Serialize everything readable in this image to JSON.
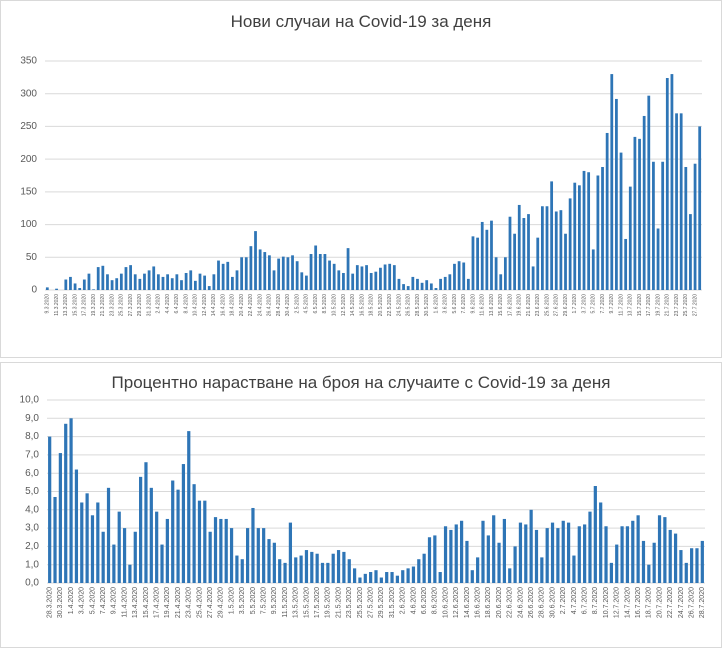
{
  "chart_data": [
    {
      "type": "bar",
      "title": "Нови случаи на Covid-19 за деня",
      "color": "#2e75b6",
      "grid": true,
      "ylim": [
        0,
        350
      ],
      "yticks": [
        0,
        50,
        100,
        150,
        200,
        250,
        300,
        350
      ],
      "categories": [
        "9.3.2020",
        null,
        "11.3.2020",
        null,
        "13.3.2020",
        null,
        "15.3.2020",
        null,
        "17.3.2020",
        null,
        "19.3.2020",
        null,
        "21.3.2020",
        null,
        "23.3.2020",
        null,
        "25.3.2020",
        null,
        "27.3.2020",
        null,
        "29.3.2020",
        null,
        "31.3.2020",
        null,
        "2.4.2020",
        null,
        "4.4.2020",
        null,
        "6.4.2020",
        null,
        "8.4.2020",
        null,
        "10.4.2020",
        null,
        "12.4.2020",
        null,
        "14.4.2020",
        null,
        "16.4.2020",
        null,
        "18.4.2020",
        null,
        "20.4.2020",
        null,
        "22.4.2020",
        null,
        "24.4.2020",
        null,
        "26.4.2020",
        null,
        "28.4.2020",
        null,
        "30.4.2020",
        null,
        "2.5.2020",
        null,
        "4.5.2020",
        null,
        "6.5.2020",
        null,
        "8.5.2020",
        null,
        "10.5.2020",
        null,
        "12.5.2020",
        null,
        "14.5.2020",
        null,
        "16.5.2020",
        null,
        "18.5.2020",
        null,
        "20.5.2020",
        null,
        "22.5.2020",
        null,
        "24.5.2020",
        null,
        "26.5.2020",
        null,
        "28.5.2020",
        null,
        "30.5.2020",
        null,
        "1.6.2020",
        null,
        "3.6.2020",
        null,
        "5.6.2020",
        null,
        "7.6.2020",
        null,
        "9.6.2020",
        null,
        "11.6.2020",
        null,
        "13.6.2020",
        null,
        "15.6.2020",
        null,
        "17.6.2020",
        null,
        "19.6.2020",
        null,
        "21.6.2020",
        null,
        "23.6.2020",
        null,
        "25.6.2020",
        null,
        "27.6.2020",
        null,
        "29.6.2020",
        null,
        "1.7.2020",
        null,
        "3.7.2020",
        null,
        "5.7.2020",
        null,
        "7.7.2020",
        null,
        "9.7.2020",
        null,
        "11.7.2020",
        null,
        "13.7.2020",
        null,
        "15.7.2020",
        null,
        "17.7.2020",
        null,
        "19.7.2020",
        null,
        "21.7.2020",
        null,
        "23.7.2020",
        null,
        "25.7.2020",
        null,
        "27.7.2020",
        null
      ],
      "values": [
        4,
        0,
        2,
        0,
        16,
        20,
        10,
        3,
        16,
        25,
        1,
        35,
        37,
        24,
        15,
        18,
        25,
        35,
        38,
        24,
        17,
        25,
        30,
        36,
        24,
        20,
        24,
        18,
        24,
        15,
        26,
        30,
        14,
        25,
        22,
        6,
        24,
        45,
        40,
        43,
        20,
        30,
        50,
        50,
        67,
        90,
        62,
        58,
        53,
        30,
        48,
        51,
        50,
        53,
        44,
        27,
        22,
        55,
        68,
        55,
        55,
        45,
        40,
        30,
        26,
        64,
        25,
        38,
        36,
        38,
        26,
        28,
        34,
        39,
        40,
        38,
        17,
        9,
        6,
        20,
        17,
        11,
        15,
        10,
        3,
        17,
        20,
        24,
        40,
        44,
        42,
        17,
        82,
        80,
        104,
        92,
        106,
        50,
        24,
        50,
        112,
        86,
        130,
        110,
        116,
        36,
        80,
        128,
        128,
        166,
        120,
        122,
        86,
        140,
        164,
        160,
        182,
        180,
        62,
        175,
        188,
        240,
        330,
        292,
        210,
        78,
        158,
        234,
        231,
        266,
        297,
        196,
        94,
        196,
        324,
        330,
        270,
        270,
        188,
        116,
        193,
        250
      ]
    },
    {
      "type": "bar",
      "title": "Процентно нарастване на броя на случаите с Covid-19 за деня",
      "color": "#2e75b6",
      "grid": true,
      "ylim": [
        0,
        10
      ],
      "yticks": [
        {
          "value": 0,
          "label": "0,0"
        },
        {
          "value": 1,
          "label": "1,0"
        },
        {
          "value": 2,
          "label": "2,0"
        },
        {
          "value": 3,
          "label": "3,0"
        },
        {
          "value": 4,
          "label": "4,0"
        },
        {
          "value": 5,
          "label": "5,0"
        },
        {
          "value": 6,
          "label": "6,0"
        },
        {
          "value": 7,
          "label": "7,0"
        },
        {
          "value": 8,
          "label": "8,0"
        },
        {
          "value": 9,
          "label": "9,0"
        },
        {
          "value": 10,
          "label": "10,0"
        }
      ],
      "categories": [
        "28.3.2020",
        null,
        "30.3.2020",
        null,
        "1.4.2020",
        null,
        "3.4.2020",
        null,
        "5.4.2020",
        null,
        "7.4.2020",
        null,
        "9.4.2020",
        null,
        "11.4.2020",
        null,
        "13.4.2020",
        null,
        "15.4.2020",
        null,
        "17.4.2020",
        null,
        "19.4.2020",
        null,
        "21.4.2020",
        null,
        "23.4.2020",
        null,
        "25.4.2020",
        null,
        "27.4.2020",
        null,
        "29.4.2020",
        null,
        "1.5.2020",
        null,
        "3.5.2020",
        null,
        "5.5.2020",
        null,
        "7.5.2020",
        null,
        "9.5.2020",
        null,
        "11.5.2020",
        null,
        "13.5.2020",
        null,
        "15.5.2020",
        null,
        "17.5.2020",
        null,
        "19.5.2020",
        null,
        "21.5.2020",
        null,
        "23.5.2020",
        null,
        "25.5.2020",
        null,
        "27.5.2020",
        null,
        "29.5.2020",
        null,
        "31.5.2020",
        null,
        "2.6.2020",
        null,
        "4.6.2020",
        null,
        "6.6.2020",
        null,
        "8.6.2020",
        null,
        "10.6.2020",
        null,
        "12.6.2020",
        null,
        "14.6.2020",
        null,
        "16.6.2020",
        null,
        "18.6.2020",
        null,
        "20.6.2020",
        null,
        "22.6.2020",
        null,
        "24.6.2020",
        null,
        "26.6.2020",
        null,
        "28.6.2020",
        null,
        "30.6.2020",
        null,
        "2.7.2020",
        null,
        "4.7.2020",
        null,
        "6.7.2020",
        null,
        "8.7.2020",
        null,
        "10.7.2020",
        null,
        "12.7.2020",
        null,
        "14.7.2020",
        null,
        "16.7.2020",
        null,
        "18.7.2020",
        null,
        "20.7.2020",
        null,
        "22.7.2020",
        null,
        "24.7.2020",
        null,
        "26.7.2020",
        null,
        "28.7.2020"
      ],
      "values": [
        8.0,
        4.7,
        7.1,
        8.7,
        9.0,
        6.2,
        4.4,
        4.9,
        3.7,
        4.4,
        2.8,
        5.2,
        2.1,
        3.9,
        3.0,
        1.0,
        2.8,
        5.8,
        6.6,
        5.2,
        3.9,
        2.1,
        3.5,
        5.6,
        5.1,
        6.5,
        8.3,
        5.4,
        4.5,
        4.5,
        2.8,
        3.6,
        3.5,
        3.5,
        3.0,
        1.5,
        1.3,
        3.0,
        4.1,
        3.0,
        3.0,
        2.4,
        2.2,
        1.3,
        1.1,
        3.3,
        1.4,
        1.5,
        1.8,
        1.7,
        1.6,
        1.1,
        1.1,
        1.6,
        1.8,
        1.7,
        1.3,
        0.8,
        0.3,
        0.5,
        0.6,
        0.7,
        0.3,
        0.6,
        0.6,
        0.4,
        0.7,
        0.8,
        0.9,
        1.3,
        1.6,
        2.5,
        2.6,
        0.6,
        3.1,
        2.9,
        3.2,
        3.4,
        2.3,
        0.7,
        1.4,
        3.4,
        2.6,
        3.7,
        2.2,
        3.5,
        0.8,
        2.0,
        3.3,
        3.2,
        4.0,
        2.9,
        1.4,
        3.0,
        3.3,
        3.0,
        3.4,
        3.3,
        1.5,
        3.1,
        3.2,
        3.9,
        5.3,
        4.4,
        3.1,
        1.1,
        2.1,
        3.1,
        3.1,
        3.4,
        3.7,
        2.3,
        1.0,
        2.2,
        3.7,
        3.6,
        2.9,
        2.7,
        1.8,
        1.1,
        1.9,
        1.9,
        2.3
      ]
    }
  ]
}
